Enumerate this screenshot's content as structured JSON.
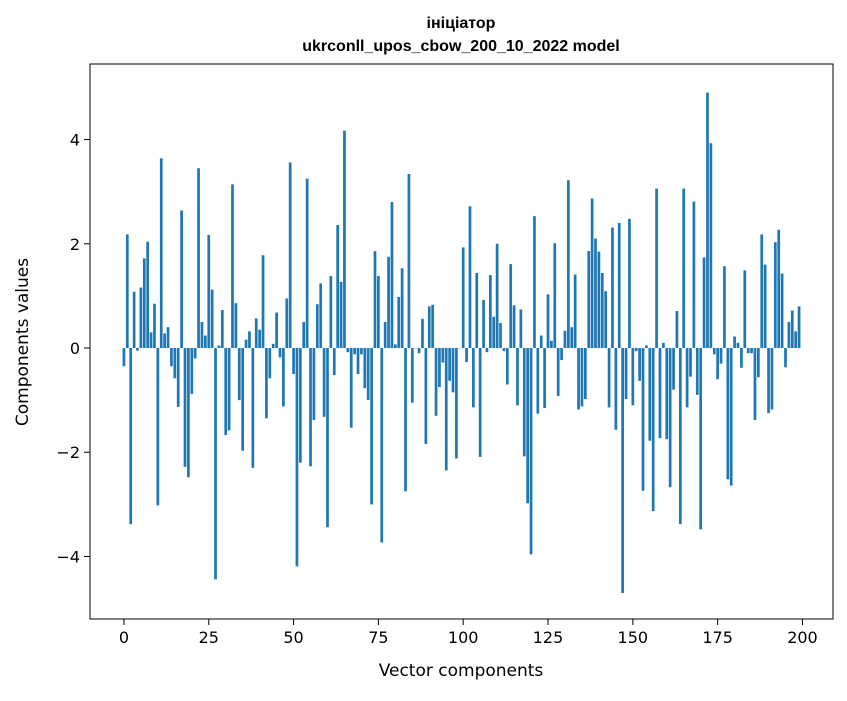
{
  "chart_data": {
    "type": "bar",
    "title": "ініціатор",
    "subtitle": "ukrconll_upos_cbow_200_10_2022 model",
    "xlabel": "Vector components",
    "ylabel": "Components values",
    "xlim": [
      -10,
      209
    ],
    "ylim": [
      -5.2,
      5.45
    ],
    "xticks": [
      0,
      25,
      50,
      75,
      100,
      125,
      150,
      175,
      200
    ],
    "yticks": [
      -4,
      -2,
      0,
      2,
      4
    ],
    "ytick_labels": [
      "−4",
      "−2",
      "0",
      "2",
      "4"
    ],
    "grid": false,
    "bar_color": "#1f77b4",
    "values": [
      -0.35,
      2.18,
      -3.38,
      1.08,
      -0.05,
      1.16,
      1.72,
      2.04,
      0.3,
      0.85,
      -3.02,
      3.64,
      0.28,
      0.4,
      -0.35,
      -0.58,
      -1.13,
      2.64,
      -2.28,
      -2.48,
      -0.88,
      -0.2,
      3.45,
      0.5,
      0.24,
      2.17,
      1.12,
      -4.44,
      0.05,
      0.73,
      -1.67,
      -1.58,
      3.14,
      0.86,
      -1.0,
      -1.97,
      0.16,
      0.32,
      -2.3,
      0.57,
      0.35,
      1.78,
      -1.35,
      -0.58,
      0.08,
      0.68,
      -0.18,
      -1.12,
      0.95,
      3.56,
      -0.5,
      -4.19,
      -2.2,
      0.5,
      3.25,
      -2.27,
      -1.38,
      0.84,
      1.24,
      -1.32,
      -3.44,
      1.38,
      -0.52,
      2.36,
      1.27,
      4.17,
      -0.08,
      -1.53,
      -0.12,
      -0.5,
      -0.12,
      -0.77,
      -1.0,
      -3.0,
      1.86,
      1.38,
      -3.73,
      0.5,
      1.75,
      2.8,
      0.07,
      0.98,
      1.53,
      -2.75,
      3.34,
      -1.05,
      0.0,
      -0.1,
      0.56,
      -1.84,
      0.8,
      0.83,
      -1.3,
      -0.75,
      -0.28,
      -2.35,
      -0.63,
      -0.85,
      -2.12,
      0.0,
      1.93,
      -0.27,
      2.72,
      -1.14,
      1.44,
      -2.09,
      0.92,
      -0.08,
      1.4,
      0.6,
      2.0,
      0.48,
      -0.06,
      -0.7,
      1.61,
      0.82,
      -1.1,
      0.74,
      -2.08,
      -2.98,
      -3.96,
      2.53,
      -1.26,
      0.24,
      -1.15,
      1.03,
      0.14,
      2.01,
      -0.92,
      -0.23,
      0.33,
      3.22,
      0.4,
      1.41,
      -1.18,
      -1.12,
      -0.98,
      1.86,
      2.87,
      2.1,
      1.85,
      1.44,
      1.09,
      -1.14,
      2.31,
      -1.57,
      2.4,
      -4.7,
      -0.98,
      2.48,
      -1.1,
      -0.06,
      -0.63,
      -2.74,
      0.05,
      -1.78,
      -3.13,
      3.06,
      -1.73,
      0.1,
      -1.75,
      -2.67,
      -0.8,
      0.71,
      -3.38,
      3.06,
      -1.14,
      -0.55,
      2.81,
      -0.9,
      -3.48,
      1.74,
      4.9,
      3.93,
      -0.12,
      -0.6,
      -0.3,
      1.57,
      -2.52,
      -2.64,
      0.22,
      0.1,
      -0.38,
      1.49,
      -0.1,
      -0.1,
      -1.38,
      -0.56,
      2.18,
      1.6,
      -1.25,
      -1.18,
      2.03,
      2.27,
      1.43,
      -0.37,
      0.5,
      0.72,
      0.32,
      0.8
    ]
  }
}
